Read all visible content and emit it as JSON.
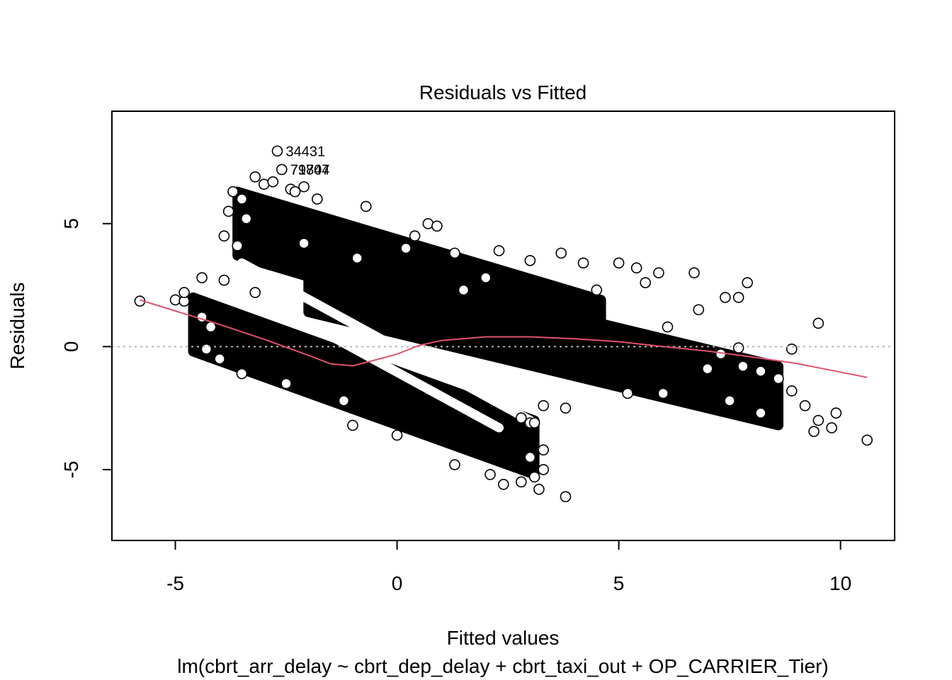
{
  "chart_data": {
    "type": "scatter",
    "title": "Residuals vs Fitted",
    "xlabel": "Fitted values",
    "subtitle": "lm(cbrt_arr_delay ~ cbrt_dep_delay + cbrt_taxi_out + OP_CARRIER_Tier)",
    "ylabel": "Residuals",
    "xlim": [
      -6.43,
      11.22
    ],
    "ylim": [
      -7.88,
      9.57
    ],
    "x_ticks": [
      -5,
      0,
      5,
      10
    ],
    "x_tick_labels": [
      "-5",
      "0",
      "5",
      "10"
    ],
    "y_ticks": [
      -5,
      0,
      5
    ],
    "y_tick_labels": [
      "-5",
      "0",
      "5"
    ],
    "reference_line": {
      "y": 0,
      "style": "dotted",
      "color": "#b5b5b5"
    },
    "point_color": "#000000",
    "smooth_color": "#df536b",
    "smooth_line": {
      "x": [
        -5.8,
        -5.0,
        -4.0,
        -3.0,
        -2.0,
        -1.5,
        -1.0,
        -0.5,
        0.0,
        0.5,
        1.0,
        2.0,
        3.0,
        4.0,
        5.0,
        6.0,
        7.0,
        8.0,
        9.0,
        10.6
      ],
      "y": [
        1.9,
        1.45,
        0.9,
        0.3,
        -0.35,
        -0.7,
        -0.78,
        -0.55,
        -0.3,
        0.05,
        0.25,
        0.4,
        0.4,
        0.32,
        0.2,
        0.0,
        -0.18,
        -0.42,
        -0.68,
        -1.25
      ]
    },
    "bands": [
      {
        "name": "upper",
        "x_start": -3.6,
        "x_end": 4.6,
        "y_center_start": 5.0,
        "y_center_end": 0.6,
        "half_width": 1.3
      },
      {
        "name": "middle",
        "x_start": -2.0,
        "x_end": 8.6,
        "y_center_start": 2.6,
        "y_center_end": -2.0,
        "half_width": 1.2
      },
      {
        "name": "lower",
        "x_start": -4.6,
        "x_end": 3.1,
        "y_center_start": 0.9,
        "y_center_end": -4.1,
        "half_width": 1.1
      }
    ],
    "stripes": [
      {
        "name": "diagonal-stripe-1",
        "x": [
          -3.5,
          3.1
        ],
        "y": [
          3.4,
          -3.1
        ]
      },
      {
        "name": "diagonal-stripe-2",
        "x": [
          -3.7,
          2.3
        ],
        "y": [
          2.6,
          -3.3
        ]
      }
    ],
    "points": [
      [
        -2.7,
        7.95
      ],
      [
        -2.6,
        7.2
      ],
      [
        -5.8,
        1.85
      ],
      [
        -5.0,
        1.9
      ],
      [
        -4.8,
        1.85
      ],
      [
        -4.4,
        1.2
      ],
      [
        -4.2,
        0.8
      ],
      [
        -3.7,
        6.3
      ],
      [
        -3.5,
        6.0
      ],
      [
        -3.2,
        6.9
      ],
      [
        -3.0,
        6.6
      ],
      [
        -2.8,
        6.7
      ],
      [
        -2.4,
        6.4
      ],
      [
        -2.1,
        6.5
      ],
      [
        -1.8,
        6.0
      ],
      [
        -0.7,
        5.7
      ],
      [
        0.7,
        5.0
      ],
      [
        0.4,
        4.5
      ],
      [
        0.9,
        4.9
      ],
      [
        1.3,
        3.8
      ],
      [
        2.3,
        3.9
      ],
      [
        3.0,
        3.5
      ],
      [
        3.7,
        3.8
      ],
      [
        4.2,
        3.4
      ],
      [
        5.0,
        3.4
      ],
      [
        5.4,
        3.2
      ],
      [
        5.6,
        2.6
      ],
      [
        5.9,
        3.0
      ],
      [
        6.7,
        3.0
      ],
      [
        7.4,
        2.0
      ],
      [
        7.9,
        2.6
      ],
      [
        7.7,
        2.0
      ],
      [
        6.8,
        1.5
      ],
      [
        9.5,
        0.95
      ],
      [
        8.9,
        -0.1
      ],
      [
        7.7,
        -0.05
      ],
      [
        7.3,
        -0.3
      ],
      [
        7.8,
        -0.8
      ],
      [
        8.2,
        -1.0
      ],
      [
        8.6,
        -1.3
      ],
      [
        8.9,
        -1.8
      ],
      [
        9.2,
        -2.4
      ],
      [
        9.5,
        -3.0
      ],
      [
        9.8,
        -3.3
      ],
      [
        9.9,
        -2.7
      ],
      [
        10.6,
        -3.8
      ],
      [
        9.4,
        -3.45
      ],
      [
        8.2,
        -2.7
      ],
      [
        7.5,
        -2.2
      ],
      [
        6.0,
        -1.9
      ],
      [
        3.8,
        -2.5
      ],
      [
        3.3,
        -2.4
      ],
      [
        2.8,
        -2.9
      ],
      [
        3.0,
        -3.1
      ],
      [
        3.1,
        -3.1
      ],
      [
        3.3,
        -4.2
      ],
      [
        3.0,
        -4.5
      ],
      [
        3.3,
        -5.0
      ],
      [
        3.1,
        -5.3
      ],
      [
        2.8,
        -5.5
      ],
      [
        2.4,
        -5.6
      ],
      [
        3.8,
        -6.1
      ],
      [
        3.2,
        -5.8
      ],
      [
        2.1,
        -5.2
      ],
      [
        1.3,
        -4.8
      ],
      [
        -1.0,
        -3.2
      ],
      [
        0.0,
        -3.6
      ],
      [
        -1.2,
        -2.2
      ],
      [
        -2.5,
        -1.5
      ],
      [
        -3.5,
        -1.1
      ],
      [
        -4.0,
        -0.5
      ],
      [
        -4.3,
        -0.1
      ],
      [
        -3.9,
        2.7
      ],
      [
        -4.4,
        2.8
      ],
      [
        -4.8,
        2.2
      ],
      [
        -2.3,
        6.3
      ],
      [
        -3.9,
        4.5
      ],
      [
        -3.6,
        4.1
      ],
      [
        -3.4,
        5.2
      ],
      [
        -3.8,
        5.5
      ],
      [
        -3.2,
        2.2
      ],
      [
        -2.1,
        4.2
      ],
      [
        -0.9,
        3.6
      ],
      [
        0.2,
        4.0
      ],
      [
        2.0,
        2.8
      ],
      [
        1.5,
        2.3
      ],
      [
        4.5,
        2.3
      ],
      [
        6.1,
        0.8
      ],
      [
        7.0,
        -0.9
      ],
      [
        5.2,
        -1.9
      ]
    ],
    "labels": [
      {
        "x": -2.7,
        "y": 7.95,
        "text": "34431"
      },
      {
        "x": -2.6,
        "y": 7.2,
        "text": "79707"
      },
      {
        "x": -2.6,
        "y": 7.2,
        "text": "71844"
      }
    ]
  }
}
